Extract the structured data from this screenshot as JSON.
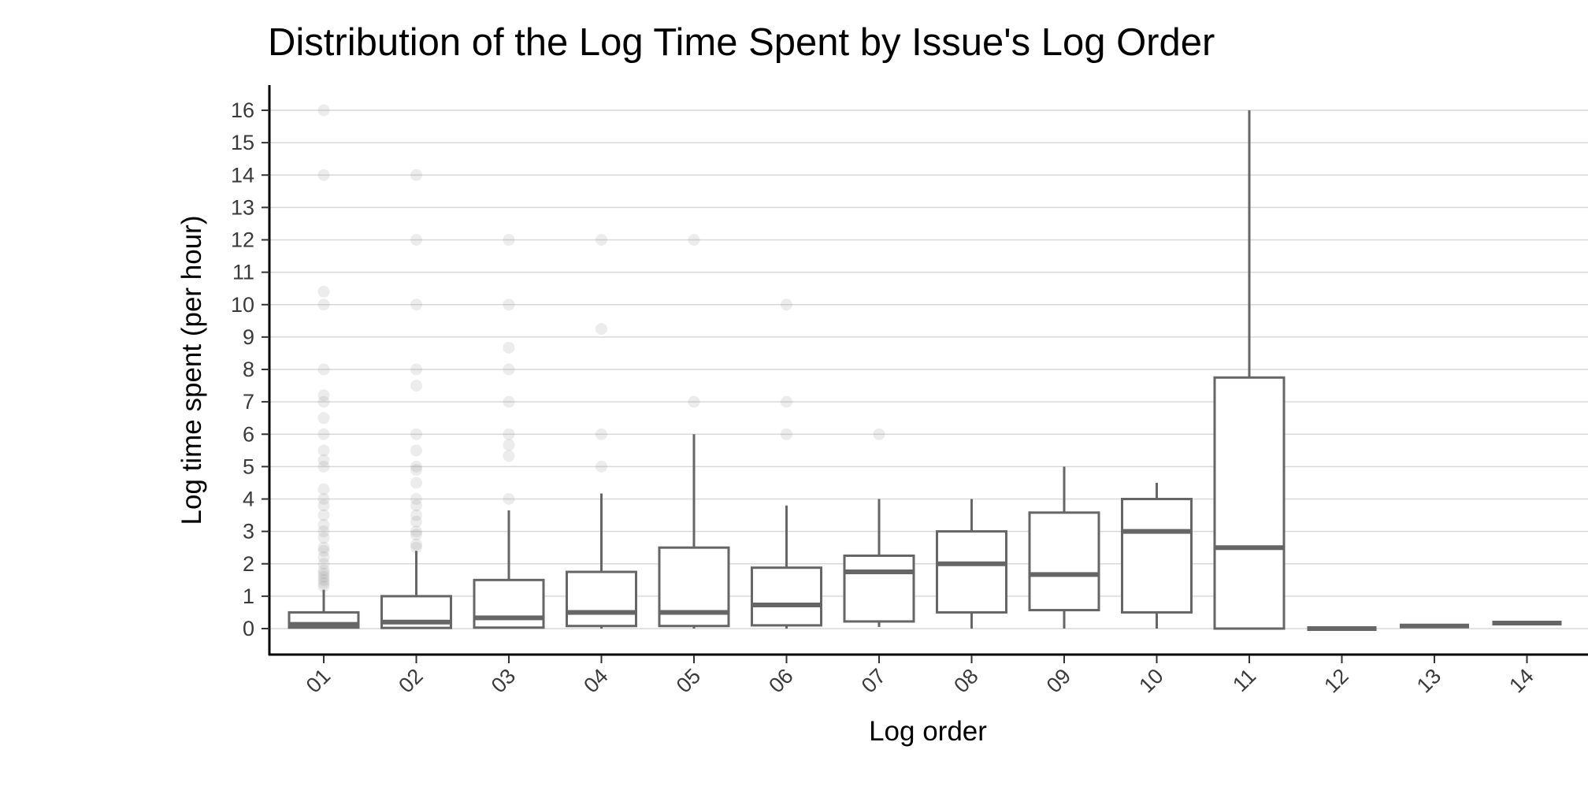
{
  "chart_data": {
    "type": "box",
    "title": "Distribution of the Log Time Spent by Issue's Log Order",
    "xlabel": "Log order",
    "ylabel": "Log time spent (per hour)",
    "ylim": [
      -0.8,
      16.8
    ],
    "yticks": [
      0,
      1,
      2,
      3,
      4,
      5,
      6,
      7,
      8,
      9,
      10,
      11,
      12,
      13,
      14,
      15,
      16
    ],
    "grid": "horizontal",
    "categories": [
      "01",
      "02",
      "03",
      "04",
      "05",
      "06",
      "07",
      "08",
      "09",
      "10",
      "11",
      "12",
      "13",
      "14"
    ],
    "boxes": [
      {
        "category": "01",
        "whisker_low": 0,
        "q1": 0.03,
        "median": 0.13,
        "q3": 0.5,
        "whisker_high": 1.2,
        "outliers": [
          1.3,
          1.4,
          1.5,
          1.6,
          1.7,
          1.8,
          2.0,
          2.2,
          2.4,
          2.5,
          2.8,
          3.0,
          3.2,
          3.5,
          3.8,
          4.0,
          4.3,
          5.0,
          5.2,
          5.5,
          6.0,
          6.5,
          7.0,
          7.2,
          8.0,
          10.0,
          10.4,
          14.0,
          16.0
        ]
      },
      {
        "category": "02",
        "whisker_low": 0,
        "q1": 0.02,
        "median": 0.2,
        "q3": 1.0,
        "whisker_high": 2.4,
        "outliers": [
          2.5,
          2.6,
          2.9,
          3.0,
          3.3,
          3.5,
          3.8,
          4.0,
          4.5,
          4.9,
          5.0,
          5.5,
          6.0,
          7.5,
          8.0,
          10.0,
          12.0,
          14.0
        ]
      },
      {
        "category": "03",
        "whisker_low": 0,
        "q1": 0.03,
        "median": 0.33,
        "q3": 1.5,
        "whisker_high": 3.65,
        "outliers": [
          4.0,
          5.33,
          5.67,
          6.0,
          7.0,
          8.0,
          8.67,
          10.0,
          12.0
        ]
      },
      {
        "category": "04",
        "whisker_low": 0,
        "q1": 0.08,
        "median": 0.5,
        "q3": 1.75,
        "whisker_high": 4.17,
        "outliers": [
          5.0,
          6.0,
          9.25,
          12.0
        ]
      },
      {
        "category": "05",
        "whisker_low": 0,
        "q1": 0.08,
        "median": 0.5,
        "q3": 2.5,
        "whisker_high": 6.0,
        "outliers": [
          7.0,
          12.0
        ]
      },
      {
        "category": "06",
        "whisker_low": 0,
        "q1": 0.1,
        "median": 0.73,
        "q3": 1.88,
        "whisker_high": 3.8,
        "outliers": [
          6.0,
          7.0,
          10.0
        ]
      },
      {
        "category": "07",
        "whisker_low": 0.05,
        "q1": 0.22,
        "median": 1.75,
        "q3": 2.25,
        "whisker_high": 4.0,
        "outliers": [
          6.0
        ]
      },
      {
        "category": "08",
        "whisker_low": 0,
        "q1": 0.5,
        "median": 2.0,
        "q3": 3.0,
        "whisker_high": 4.0,
        "outliers": []
      },
      {
        "category": "09",
        "whisker_low": 0,
        "q1": 0.57,
        "median": 1.67,
        "q3": 3.58,
        "whisker_high": 5.0,
        "outliers": []
      },
      {
        "category": "10",
        "whisker_low": 0,
        "q1": 0.5,
        "median": 3.0,
        "q3": 4.0,
        "whisker_high": 4.5,
        "outliers": []
      },
      {
        "category": "11",
        "whisker_low": 0,
        "q1": 0.0,
        "median": 2.5,
        "q3": 7.75,
        "whisker_high": 16.0,
        "outliers": []
      },
      {
        "category": "12",
        "whisker_low": 0,
        "q1": 0.0,
        "median": 0.0,
        "q3": 0.0,
        "whisker_high": 0.0,
        "outliers": []
      },
      {
        "category": "13",
        "whisker_low": 0.08,
        "q1": 0.08,
        "median": 0.08,
        "q3": 0.08,
        "whisker_high": 0.08,
        "outliers": []
      },
      {
        "category": "14",
        "whisker_low": 0.17,
        "q1": 0.17,
        "median": 0.17,
        "q3": 0.17,
        "whisker_high": 0.17,
        "outliers": []
      }
    ],
    "colors": {
      "box_stroke": "#666666",
      "box_fill": "#ffffff",
      "grid": "#d9d9d9",
      "axis": "#000000",
      "outlier": "#808080"
    }
  }
}
